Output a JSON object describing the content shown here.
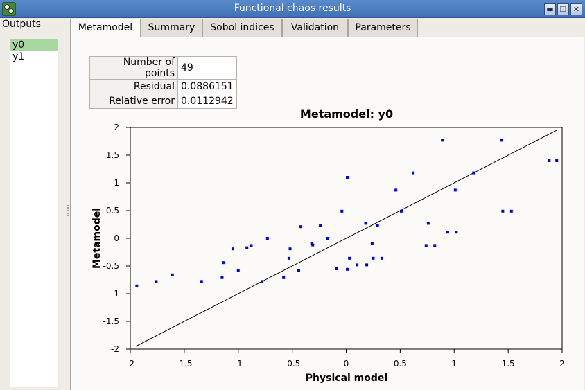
{
  "window": {
    "title": "Functional chaos results",
    "controls": [
      "minimize-icon",
      "maximize-icon",
      "close-icon"
    ]
  },
  "outputs": {
    "label": "Outputs",
    "items": [
      {
        "label": "y0",
        "selected": true
      },
      {
        "label": "y1",
        "selected": false
      }
    ]
  },
  "tabs": [
    {
      "label": "Metamodel",
      "active": true
    },
    {
      "label": "Summary",
      "active": false
    },
    {
      "label": "Sobol indices",
      "active": false
    },
    {
      "label": "Validation",
      "active": false
    },
    {
      "label": "Parameters",
      "active": false
    }
  ],
  "stats": [
    {
      "label": "Number of points",
      "value": "49"
    },
    {
      "label": "Residual",
      "value": "0.0886151"
    },
    {
      "label": "Relative error",
      "value": "0.0112942"
    }
  ],
  "chart_data": {
    "type": "scatter",
    "title": "Metamodel: y0",
    "xlabel": "Physical model",
    "ylabel": "Metamodel",
    "xlim": [
      -2,
      2
    ],
    "ylim": [
      -2,
      2
    ],
    "xticks": [
      "-2",
      "-1.5",
      "-1",
      "-0.5",
      "0",
      "0.5",
      "1",
      "1.5",
      "2"
    ],
    "yticks": [
      "2",
      "1.5",
      "1",
      "0.5",
      "0",
      "-0.5",
      "-1",
      "-1.5",
      "-2"
    ],
    "grid": false,
    "point_color": "#0000dd",
    "reference_line": {
      "x": [
        -1.95,
        1.95
      ],
      "y": [
        -1.95,
        1.95
      ]
    },
    "series": [
      {
        "x": [
          -1.94,
          -1.76,
          -1.61,
          -1.34,
          -1.15,
          -1.14,
          -1.05,
          -1.0,
          -0.92,
          -0.88,
          -0.73,
          -0.78,
          -0.58,
          -0.53,
          -0.52,
          -0.44,
          -0.42,
          -0.32,
          -0.31,
          -0.24,
          -0.17,
          -0.09,
          -0.04,
          0.01,
          0.01,
          0.03,
          0.1,
          0.18,
          0.19,
          0.24,
          0.25,
          0.29,
          0.33,
          0.46,
          0.51,
          0.62,
          0.74,
          0.76,
          0.82,
          0.89,
          0.94,
          1.01,
          1.02,
          1.18,
          1.44,
          1.45,
          1.53,
          1.88,
          1.95
        ],
        "y": [
          -0.86,
          -0.78,
          -0.66,
          -0.78,
          -0.71,
          -0.44,
          -0.19,
          -0.58,
          -0.17,
          -0.13,
          0.0,
          -0.78,
          -0.71,
          -0.36,
          -0.19,
          -0.58,
          0.21,
          -0.1,
          -0.12,
          0.23,
          0.0,
          -0.55,
          0.49,
          -0.56,
          1.1,
          -0.36,
          -0.48,
          0.27,
          -0.48,
          -0.1,
          -0.36,
          0.23,
          -0.36,
          0.87,
          0.49,
          1.18,
          -0.13,
          0.27,
          -0.13,
          1.77,
          0.11,
          0.87,
          0.11,
          1.18,
          1.77,
          0.49,
          0.49,
          1.4,
          1.4
        ]
      }
    ]
  }
}
